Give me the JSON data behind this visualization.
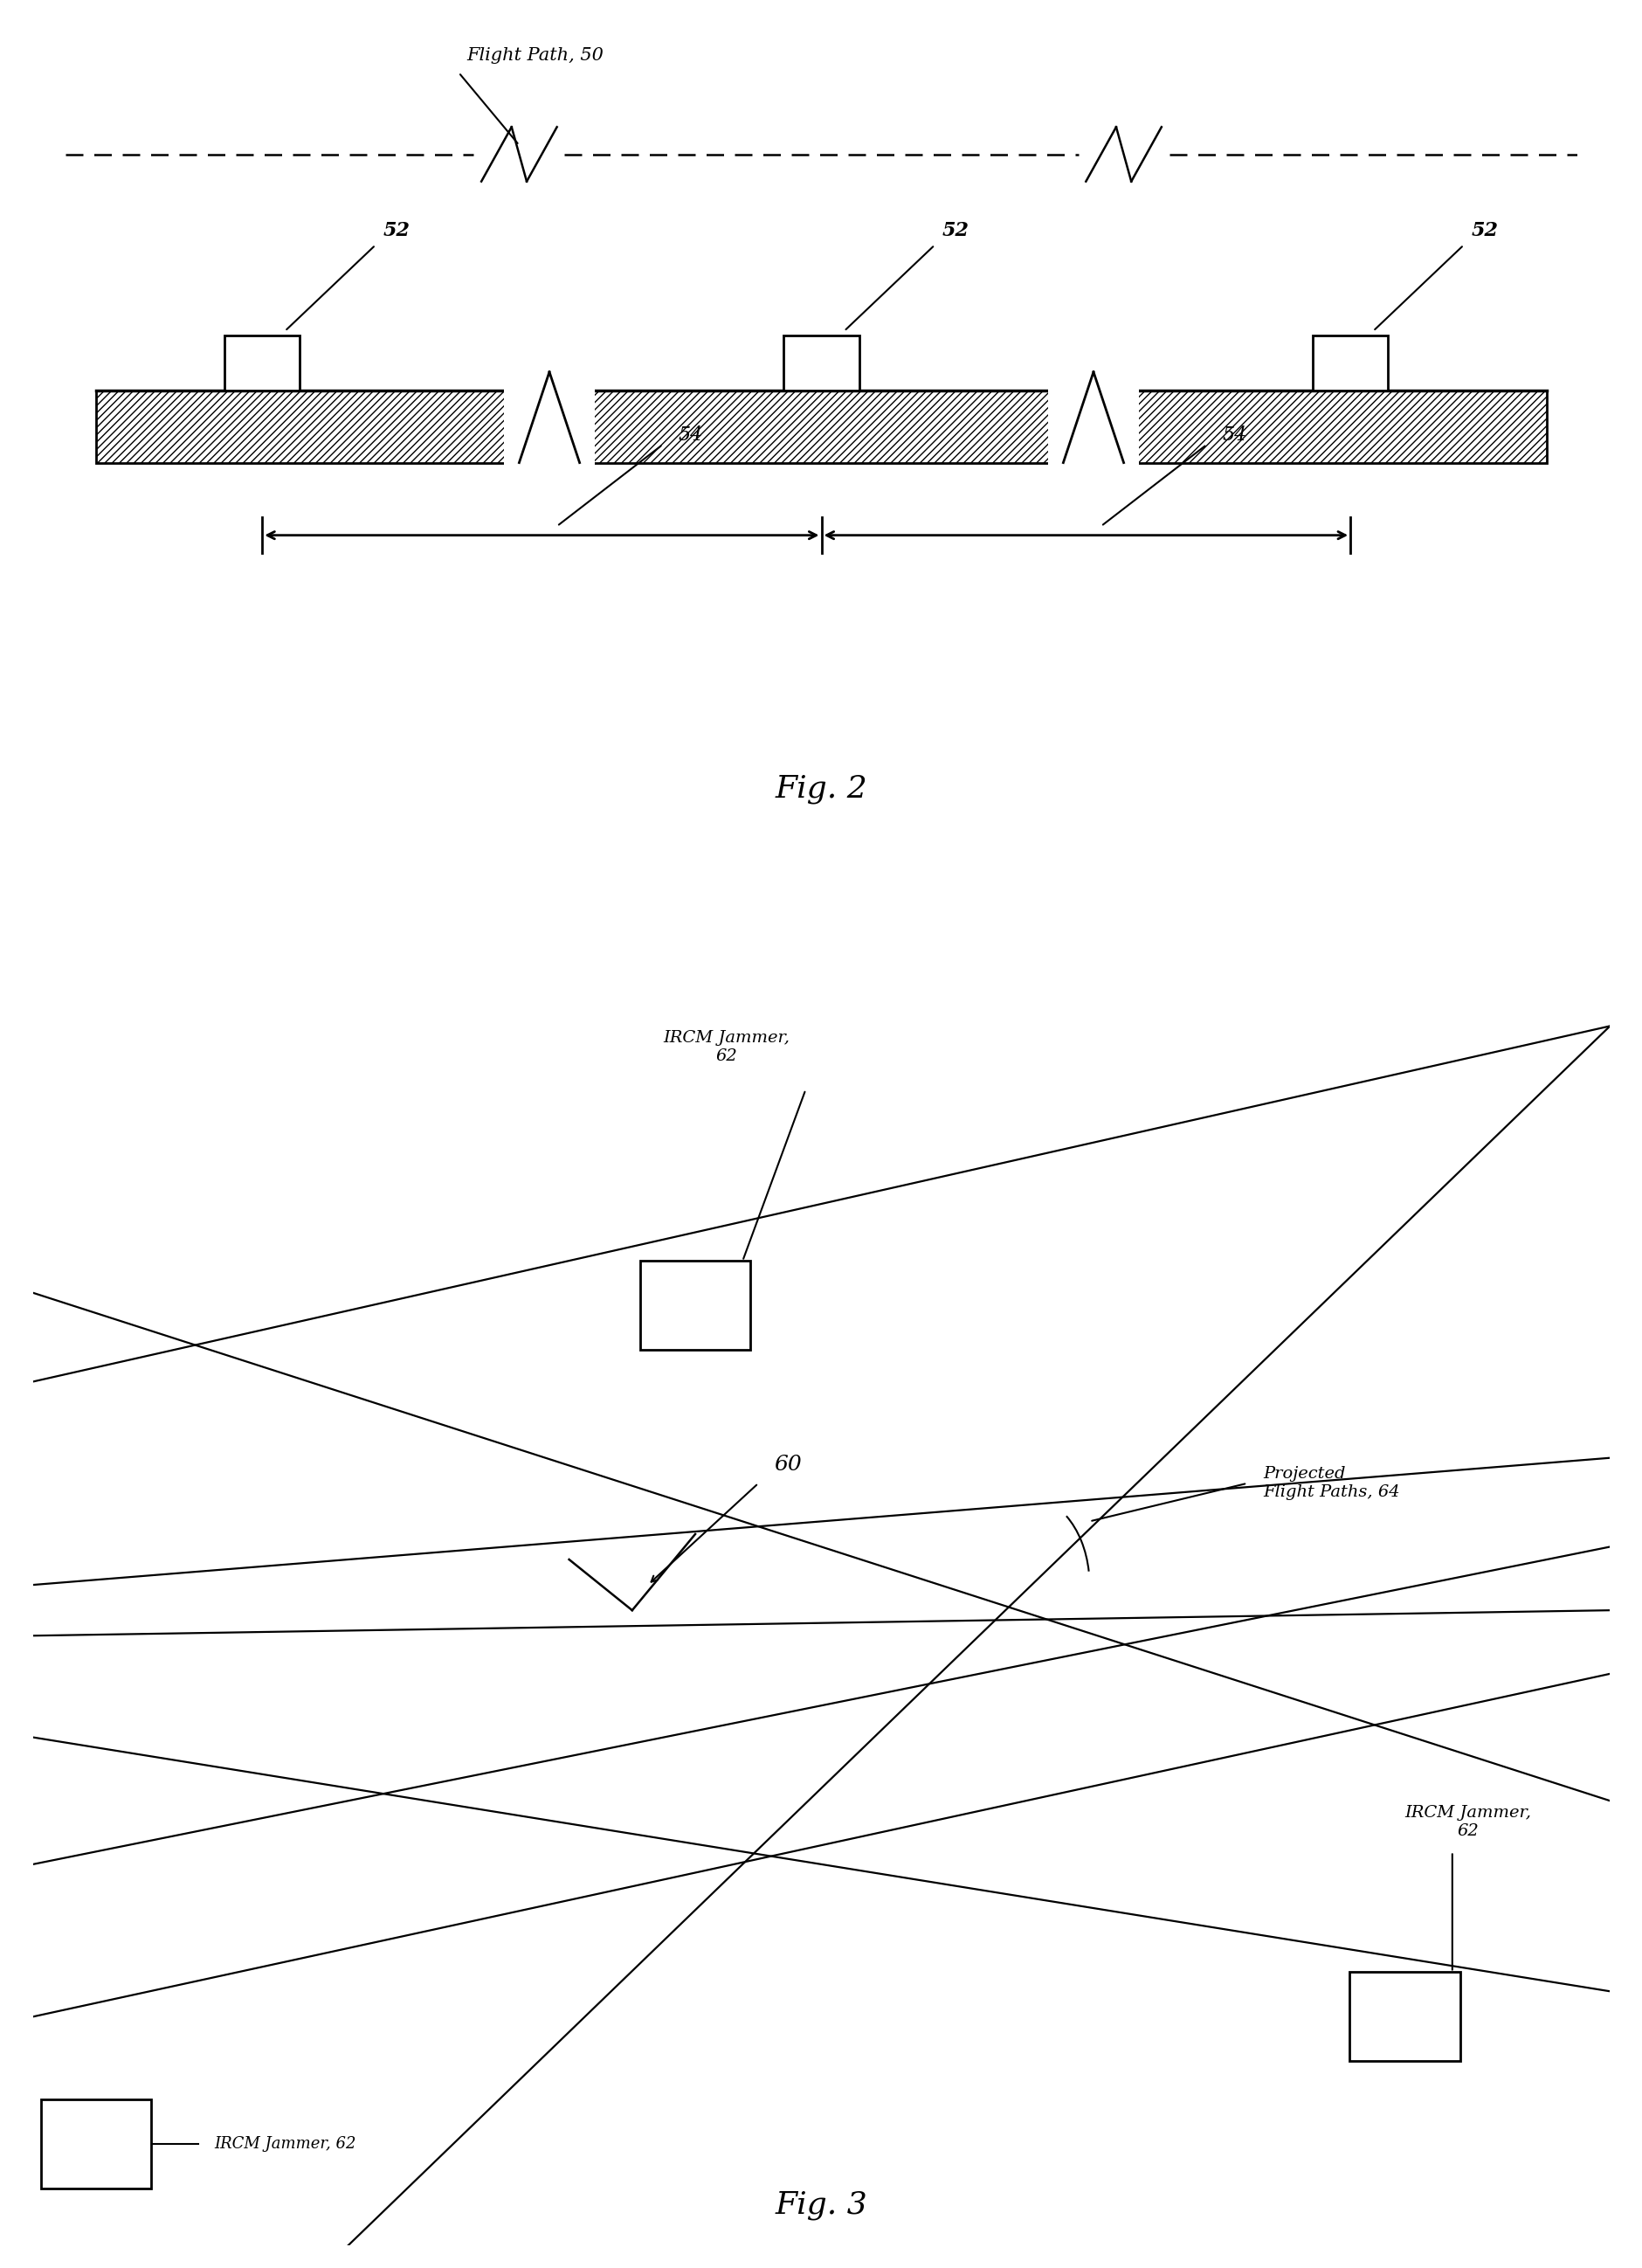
{
  "background_color": "#ffffff",
  "fig_width": 18.81,
  "fig_height": 25.96,
  "fig2_label": "Fig. 2",
  "fig3_label": "Fig. 3",
  "flight_path_label": "Flight Path, 50",
  "label_52": "52",
  "label_54": "54",
  "label_60": "60",
  "label_projected": "Projected\nFlight Paths, 64",
  "label_ircm_top": "IRCM Jammer,\n62",
  "label_ircm_right": "IRCM Jammer,\n62",
  "label_ircm_legend": "IRCM Jammer, 62",
  "text_color": "#000000"
}
